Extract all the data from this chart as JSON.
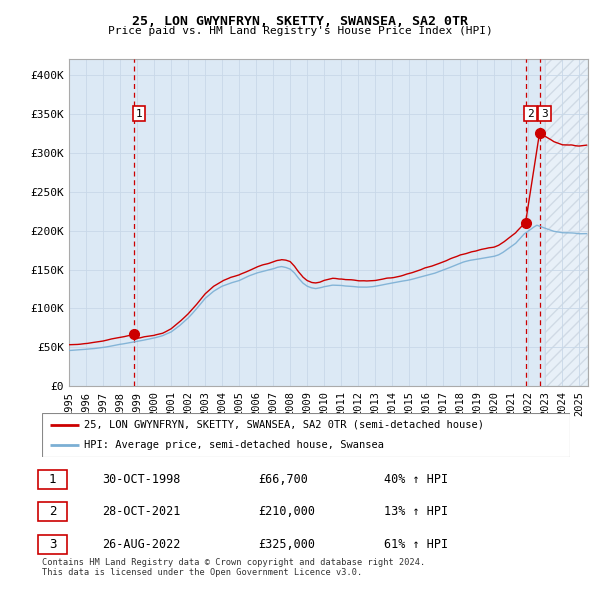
{
  "title": "25, LON GWYNFRYN, SKETTY, SWANSEA, SA2 0TR",
  "subtitle": "Price paid vs. HM Land Registry's House Price Index (HPI)",
  "xlim_start": 1995.0,
  "xlim_end": 2025.5,
  "ylim": [
    0,
    420000
  ],
  "yticks": [
    0,
    50000,
    100000,
    150000,
    200000,
    250000,
    300000,
    350000,
    400000
  ],
  "ytick_labels": [
    "£0",
    "£50K",
    "£100K",
    "£150K",
    "£200K",
    "£250K",
    "£300K",
    "£350K",
    "£400K"
  ],
  "hpi_color": "#7bafd4",
  "price_color": "#cc0000",
  "vline_color": "#cc0000",
  "plot_bg_color": "#dce9f5",
  "sale_dates": [
    1998.83,
    2021.83,
    2022.65
  ],
  "sale_prices": [
    66700,
    210000,
    325000
  ],
  "sale_labels": [
    "1",
    "2",
    "3"
  ],
  "hpi_anchors_t": [
    1995.0,
    1995.5,
    1996.0,
    1996.5,
    1997.0,
    1997.5,
    1998.0,
    1998.5,
    1999.0,
    1999.5,
    2000.0,
    2000.5,
    2001.0,
    2001.5,
    2002.0,
    2002.5,
    2003.0,
    2003.5,
    2004.0,
    2004.5,
    2005.0,
    2005.5,
    2006.0,
    2006.5,
    2007.0,
    2007.25,
    2007.5,
    2007.75,
    2008.0,
    2008.25,
    2008.5,
    2008.75,
    2009.0,
    2009.25,
    2009.5,
    2009.75,
    2010.0,
    2010.5,
    2011.0,
    2011.5,
    2012.0,
    2012.5,
    2013.0,
    2013.5,
    2014.0,
    2014.5,
    2015.0,
    2015.5,
    2016.0,
    2016.5,
    2017.0,
    2017.5,
    2018.0,
    2018.5,
    2019.0,
    2019.5,
    2020.0,
    2020.25,
    2020.5,
    2020.75,
    2021.0,
    2021.25,
    2021.5,
    2021.75,
    2022.0,
    2022.25,
    2022.5,
    2022.75,
    2023.0,
    2023.25,
    2023.5,
    2023.75,
    2024.0,
    2024.5,
    2025.0
  ],
  "hpi_anchors_v": [
    46000,
    46500,
    47500,
    48500,
    50000,
    52000,
    54000,
    56000,
    58000,
    60000,
    62000,
    65000,
    70000,
    78000,
    88000,
    100000,
    113000,
    122000,
    128000,
    132000,
    135000,
    140000,
    144000,
    147000,
    150000,
    152000,
    153000,
    152000,
    150000,
    145000,
    138000,
    132000,
    128000,
    126000,
    125000,
    126000,
    128000,
    130000,
    130000,
    129000,
    128000,
    128000,
    129000,
    131000,
    133000,
    135000,
    137000,
    140000,
    143000,
    146000,
    150000,
    154000,
    158000,
    161000,
    163000,
    165000,
    167000,
    169000,
    172000,
    176000,
    180000,
    184000,
    190000,
    196000,
    200000,
    204000,
    207000,
    205000,
    203000,
    201000,
    199000,
    198000,
    197000,
    197000,
    196000
  ],
  "legend_entries": [
    "25, LON GWYNFRYN, SKETTY, SWANSEA, SA2 0TR (semi-detached house)",
    "HPI: Average price, semi-detached house, Swansea"
  ],
  "table_data": [
    [
      "1",
      "30-OCT-1998",
      "£66,700",
      "40% ↑ HPI"
    ],
    [
      "2",
      "28-OCT-2021",
      "£210,000",
      "13% ↑ HPI"
    ],
    [
      "3",
      "26-AUG-2022",
      "£325,000",
      "61% ↑ HPI"
    ]
  ],
  "footnote": "Contains HM Land Registry data © Crown copyright and database right 2024.\nThis data is licensed under the Open Government Licence v3.0.",
  "background_color": "#ffffff",
  "grid_color": "#c8d8e8"
}
